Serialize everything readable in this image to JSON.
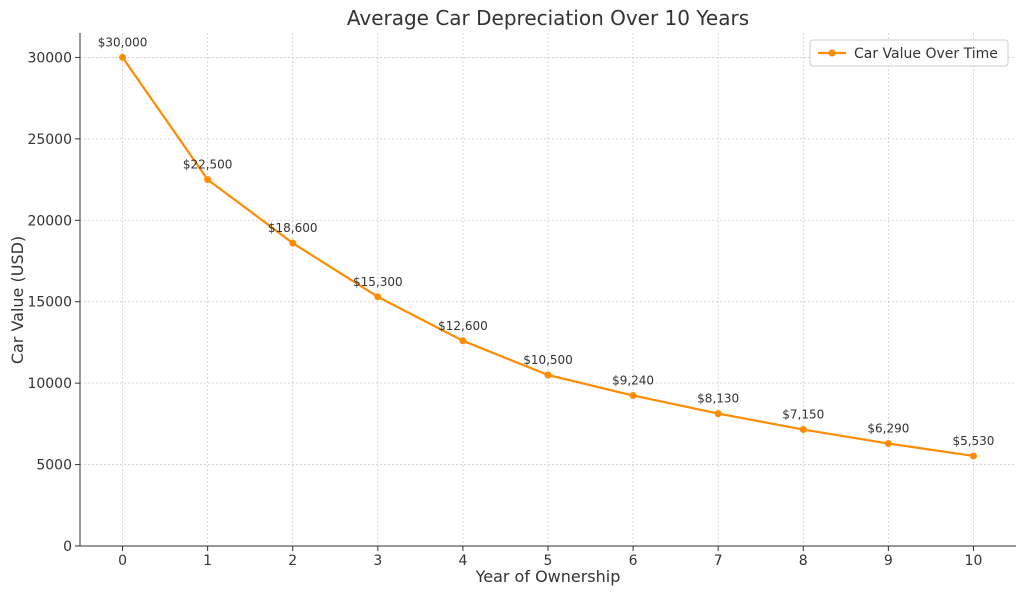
{
  "chart_data": {
    "type": "line",
    "title": "Average Car Depreciation Over 10 Years",
    "xlabel": "Year of Ownership",
    "ylabel": "Car Value (USD)",
    "x": [
      0,
      1,
      2,
      3,
      4,
      5,
      6,
      7,
      8,
      9,
      10
    ],
    "xlim": [
      -0.5,
      10.5
    ],
    "ylim": [
      0,
      31500
    ],
    "x_ticks": [
      0,
      1,
      2,
      3,
      4,
      5,
      6,
      7,
      8,
      9,
      10
    ],
    "y_ticks": [
      0,
      5000,
      10000,
      15000,
      20000,
      25000,
      30000
    ],
    "grid": true,
    "legend_position": "top-right",
    "series": [
      {
        "name": "Car Value Over Time",
        "color": "#ff8c00",
        "marker": "circle",
        "values": [
          30000,
          22500,
          18600,
          15300,
          12600,
          10500,
          9240,
          8130,
          7150,
          6290,
          5530
        ],
        "data_labels": [
          "$30,000",
          "$22,500",
          "$18,600",
          "$15,300",
          "$12,600",
          "$10,500",
          "$9,240",
          "$8,130",
          "$7,150",
          "$6,290",
          "$5,530"
        ]
      }
    ]
  }
}
